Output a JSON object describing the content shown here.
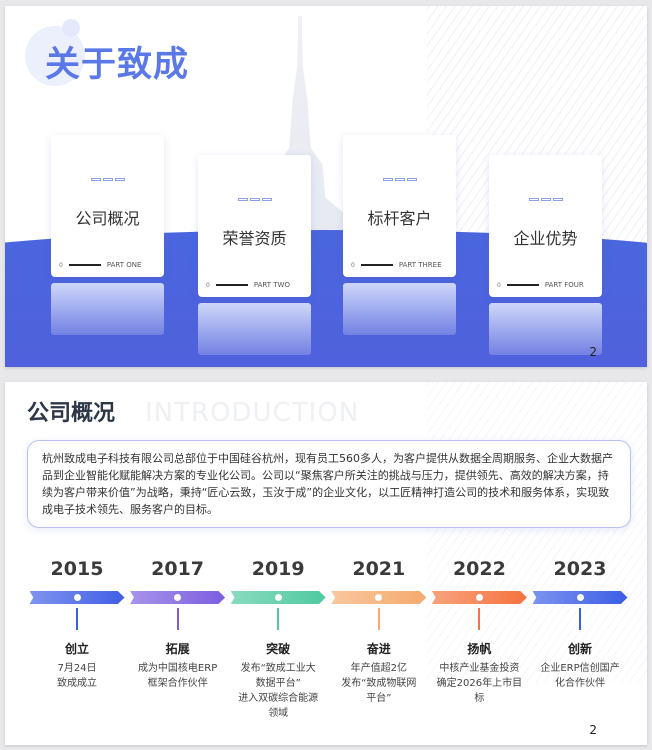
{
  "slide1": {
    "title": "关于致成",
    "page": "2",
    "cards": [
      {
        "title": "公司概况",
        "part": "PART ONE",
        "num": "0"
      },
      {
        "title": "荣誉资质",
        "part": "PART TWO",
        "num": "0"
      },
      {
        "title": "标杆客户",
        "part": "PART THREE",
        "num": "0"
      },
      {
        "title": "企业优势",
        "part": "PART FOUR",
        "num": "0"
      }
    ],
    "colors": {
      "accent": "#4a66de",
      "title": "#5a78e8"
    }
  },
  "slide2": {
    "title": "公司概况",
    "watermark": "INTRODUCTION",
    "paragraph": "杭州致成电子科技有限公司总部位于中国硅谷杭州，现有员工560多人，为客户提供从数据全周期服务、企业大数据产品到企业智能化赋能解决方案的专业化公司。公司以“聚焦客户所关注的挑战与压力，提供领先、高效的解决方案，持续为客户带来价值”为战略，秉持“匠心云致，玉汝于成”的企业文化，以工匠精神打造公司的技术和服务体系，实现致成电子技术领先、服务客户的目标。",
    "page": "2",
    "timeline": [
      {
        "year": "2015",
        "name": "创立",
        "desc": "7月24日\n致成成立",
        "color": "#3f5ee6"
      },
      {
        "year": "2017",
        "name": "拓展",
        "desc": "成为中国核电ERP\n框架合作伙伴",
        "color": "#7b5ee0"
      },
      {
        "year": "2019",
        "name": "突破",
        "desc": "发布“致成工业大\n数据平台”\n进入双碳综合能源\n领域",
        "color": "#4fc9a0"
      },
      {
        "year": "2021",
        "name": "奋进",
        "desc": "年产值超2亿\n发布“致成物联网\n平台”",
        "color": "#f5aa6e"
      },
      {
        "year": "2022",
        "name": "扬帆",
        "desc": "中核产业基金投资\n确定2026年上市目\n标",
        "color": "#f5733e"
      },
      {
        "year": "2023",
        "name": "创新",
        "desc": "企业ERP信创国产\n化合作伙伴",
        "color": "#3a5de6"
      }
    ]
  }
}
